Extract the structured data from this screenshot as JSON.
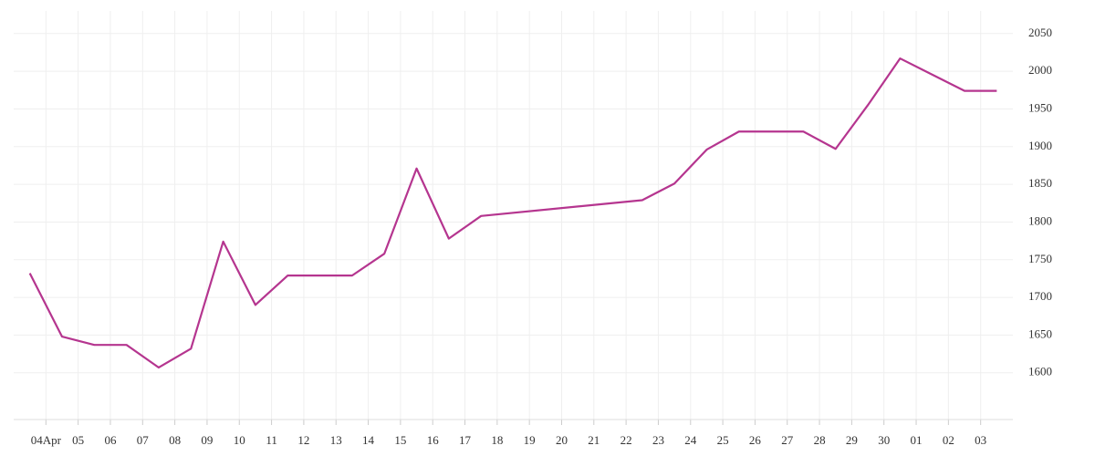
{
  "chart_data": {
    "type": "line",
    "x": [
      3.5,
      4.5,
      5.5,
      6.5,
      7.5,
      8.5,
      9.5,
      10.5,
      11.5,
      12.5,
      13.5,
      14.5,
      15.5,
      16.5,
      17.5,
      22.5,
      23.5,
      24.5,
      25.5,
      26.5,
      27.5,
      28.5,
      29.5,
      30.5,
      32.5,
      33.5
    ],
    "series": [
      {
        "color": "#b5358f",
        "values": [
          1732,
          1648,
          1637,
          1637,
          1607,
          1632,
          1774,
          1690,
          1729,
          1729,
          1729,
          1758,
          1871,
          1778,
          1808,
          1829,
          1851,
          1896,
          1920,
          1920,
          1920,
          1897,
          1955,
          2017,
          1974,
          1974
        ]
      }
    ],
    "xlim": [
      3,
      34
    ],
    "xticks": [
      {
        "value": 4,
        "label": "04Apr"
      },
      {
        "value": 5,
        "label": "05"
      },
      {
        "value": 6,
        "label": "06"
      },
      {
        "value": 7,
        "label": "07"
      },
      {
        "value": 8,
        "label": "08"
      },
      {
        "value": 9,
        "label": "09"
      },
      10,
      11,
      12,
      13,
      14,
      15,
      16,
      17,
      18,
      19,
      20,
      21,
      22,
      23,
      24,
      25,
      26,
      27,
      28,
      29,
      30,
      {
        "value": 31,
        "label": "01"
      },
      {
        "value": 32,
        "label": "02"
      },
      {
        "value": 33,
        "label": "03"
      }
    ],
    "ylim": [
      1538,
      2080
    ],
    "yticks": [
      1600,
      1650,
      1700,
      1750,
      1800,
      1850,
      1900,
      1950,
      2000,
      2050
    ],
    "grid": true
  }
}
